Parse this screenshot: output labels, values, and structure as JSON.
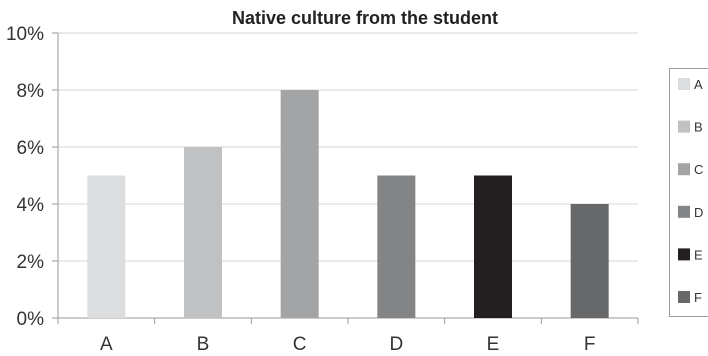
{
  "chart_data": {
    "type": "bar",
    "title": "Native culture from the student",
    "categories": [
      "A",
      "B",
      "C",
      "D",
      "E",
      "F"
    ],
    "values": [
      5,
      6,
      8,
      5,
      5,
      4
    ],
    "unit": "%",
    "ylim": [
      0,
      10
    ],
    "yticks": [
      "0%",
      "2%",
      "4%",
      "6%",
      "8%",
      "10%"
    ],
    "xlabel": "",
    "ylabel": "",
    "grid": true,
    "legend_position": "right",
    "colors": [
      "#dcdddf",
      "#c0c1c3",
      "#a3a4a6",
      "#838486",
      "#231f20",
      "#67686a"
    ],
    "legend": [
      "A",
      "B",
      "C",
      "D",
      "E",
      "F"
    ]
  }
}
